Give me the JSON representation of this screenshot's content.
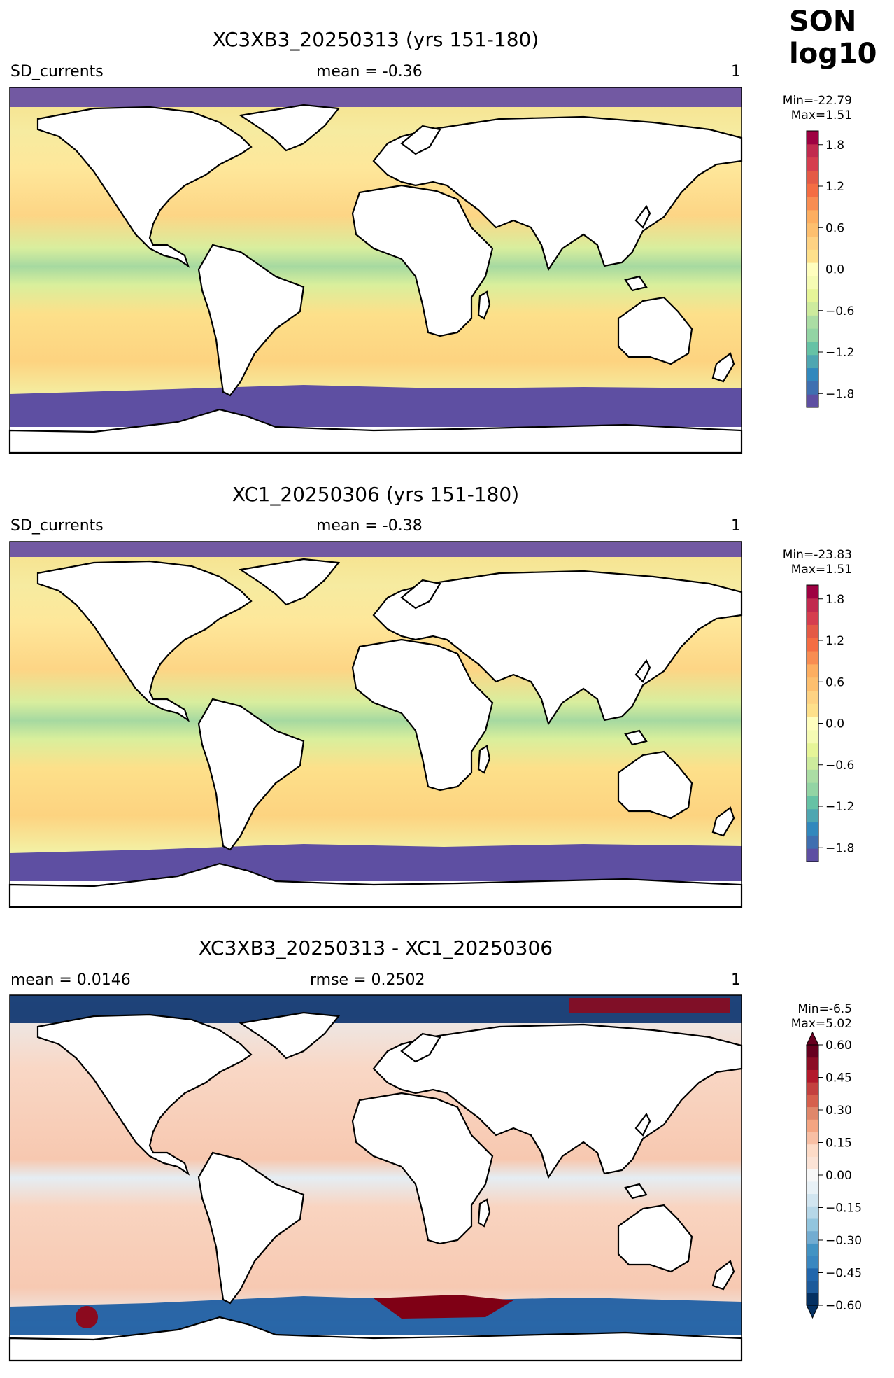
{
  "season": {
    "line1": "SON",
    "line2": "log10"
  },
  "panels": [
    {
      "title": "XC3XB3_20250313 (yrs 151-180)",
      "left_label": "SD_currents",
      "center_label": "mean = -0.36",
      "right_label": "1",
      "cb_min": "Min=-22.79",
      "cb_max": "Max=1.51"
    },
    {
      "title": "XC1_20250306 (yrs 151-180)",
      "left_label": "SD_currents",
      "center_label": "mean = -0.38",
      "right_label": "1",
      "cb_min": "Min=-23.83",
      "cb_max": "Max=1.51"
    },
    {
      "title": "XC3XB3_20250313 - XC1_20250306",
      "left_label": "mean = 0.0146",
      "center_label": "rmse = 0.2502",
      "right_label": "1",
      "cb_min": "Min=-6.5",
      "cb_max": "Max=5.02"
    }
  ],
  "colorbars": [
    {
      "ticks": [
        "1.8",
        "1.2",
        "0.6",
        "0.0",
        "−0.6",
        "−1.2",
        "−1.8"
      ],
      "range": [
        -2.0,
        2.0
      ],
      "colormap": "Spectral_r"
    },
    {
      "ticks": [
        "1.8",
        "1.2",
        "0.6",
        "0.0",
        "−0.6",
        "−1.2",
        "−1.8"
      ],
      "range": [
        -2.0,
        2.0
      ],
      "colormap": "Spectral_r"
    },
    {
      "ticks": [
        "0.60",
        "0.45",
        "0.30",
        "0.15",
        "0.00",
        "−0.15",
        "−0.30",
        "−0.45",
        "−0.60"
      ],
      "range": [
        -0.6,
        0.6
      ],
      "colormap": "RdBu_r",
      "extend": "both"
    }
  ],
  "chart_data": [
    {
      "type": "heatmap",
      "title": "XC3XB3_20250313 (yrs 151-180)",
      "variable": "SD_currents",
      "mean": -0.36,
      "min": -22.79,
      "max": 1.51,
      "color_range": [
        -2.0,
        2.0
      ],
      "colormap": "Spectral_r",
      "projection": "global lat-lon map"
    },
    {
      "type": "heatmap",
      "title": "XC1_20250306 (yrs 151-180)",
      "variable": "SD_currents",
      "mean": -0.38,
      "min": -23.83,
      "max": 1.51,
      "color_range": [
        -2.0,
        2.0
      ],
      "colormap": "Spectral_r",
      "projection": "global lat-lon map"
    },
    {
      "type": "heatmap",
      "title": "XC3XB3_20250313 - XC1_20250306",
      "mean": 0.0146,
      "rmse": 0.2502,
      "min": -6.5,
      "max": 5.02,
      "color_range": [
        -0.6,
        0.6
      ],
      "colormap": "RdBu_r",
      "projection": "global lat-lon map"
    }
  ]
}
